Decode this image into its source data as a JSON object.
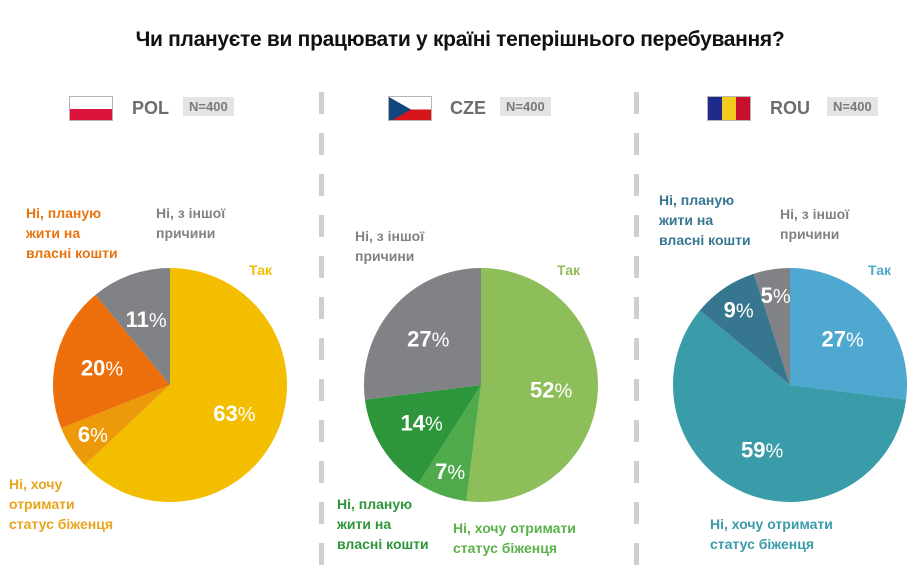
{
  "title": "Чи плануєте ви працювати у країні теперішнього перебування?",
  "chart_data": [
    {
      "type": "pie",
      "country": "POL",
      "n_label": "N=400",
      "flag": "poland-flag",
      "categories": [
        "Так",
        "Ні, хочу отримати статус біженця",
        "Ні, планую жити на власні кошти",
        "Ні, з іншої причини"
      ],
      "values": [
        63,
        6,
        20,
        11
      ],
      "colors": [
        "#f4be00",
        "#ec9a0a",
        "#ec6f0b",
        "#808285"
      ],
      "label_colors": [
        "#f4be00",
        "#e9a41e",
        "#e8730f",
        "#808285"
      ]
    },
    {
      "type": "pie",
      "country": "CZE",
      "n_label": "N=400",
      "flag": "czech-flag",
      "categories": [
        "Так",
        "Ні, хочу отримати статус біженця",
        "Ні, планую жити на власні кошти",
        "Ні, з іншої причини"
      ],
      "values": [
        52,
        7,
        14,
        27
      ],
      "colors": [
        "#8dbe5a",
        "#4eaa4a",
        "#2e963a",
        "#808285"
      ],
      "label_colors": [
        "#8dbe5a",
        "#5bb14a",
        "#2e963a",
        "#808285"
      ]
    },
    {
      "type": "pie",
      "country": "ROU",
      "n_label": "N=400",
      "flag": "romania-flag",
      "categories": [
        "Так",
        "Ні, хочу отримати статус біженця",
        "Ні, планую жити на власні кошти",
        "Ні, з іншої причини"
      ],
      "values": [
        27,
        59,
        9,
        5
      ],
      "colors": [
        "#4fa8cf",
        "#3a9ca9",
        "#37768f",
        "#808285"
      ],
      "label_colors": [
        "#4fa8cf",
        "#3a9ca9",
        "#37768f",
        "#808285"
      ]
    }
  ],
  "labels": {
    "pol": {
      "tak": "Так",
      "refugee": [
        "Ні, хочу",
        "отримати",
        "статус біженця"
      ],
      "own": [
        "Ні, планую",
        "жити на",
        "власні кошти"
      ],
      "other": [
        "Ні, з іншої",
        "причини"
      ]
    },
    "cze": {
      "tak": "Так",
      "refugee": [
        "Ні, хочу отримати",
        "статус біженця"
      ],
      "own": [
        "Ні, планую",
        "жити на",
        "власні кошти"
      ],
      "other": [
        "Ні, з іншої",
        "причини"
      ]
    },
    "rou": {
      "tak": "Так",
      "refugee": [
        "Ні, хочу отримати",
        "статус біженця"
      ],
      "own": [
        "Ні, планую",
        "жити на",
        "власні кошти"
      ],
      "other": [
        "Ні, з іншої",
        "причини"
      ]
    }
  }
}
